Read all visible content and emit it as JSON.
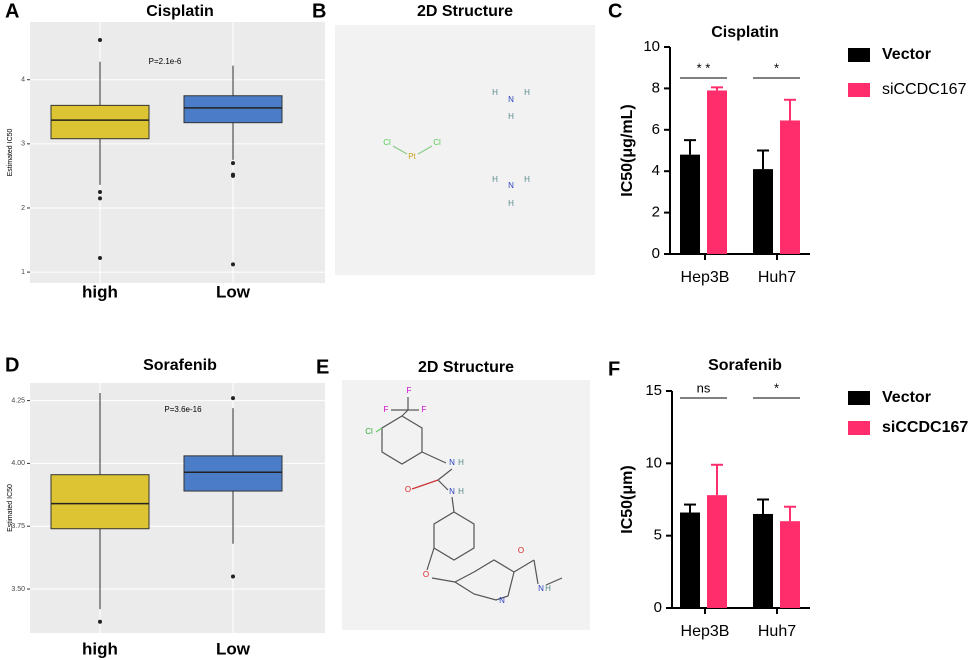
{
  "chart_data": [
    {
      "type": "box",
      "label": "A",
      "title": "Cisplatin",
      "ylabel": "Estimated IC50",
      "annotation": "P=2.1e-6",
      "categories": [
        "high",
        "Low"
      ],
      "boxes": [
        {
          "min": 2.36,
          "q1": 3.08,
          "median": 3.37,
          "q3": 3.6,
          "max": 4.28,
          "outliers": [
            4.62,
            2.25,
            2.15,
            1.22
          ],
          "color": "#dcc433"
        },
        {
          "min": 2.75,
          "q1": 3.33,
          "median": 3.56,
          "q3": 3.75,
          "max": 4.22,
          "outliers": [
            2.7,
            2.52,
            2.5,
            1.12
          ],
          "color": "#4a7cc7"
        }
      ],
      "ylim": [
        0.83,
        4.9
      ],
      "yticks": [
        1,
        2,
        3,
        4
      ],
      "grid": true
    },
    {
      "type": "structure",
      "label": "B",
      "title": "2D Structure",
      "atoms": [
        "Cl",
        "Pt",
        "Cl",
        "H",
        "N",
        "H",
        "H",
        "H",
        "N",
        "H",
        "H"
      ]
    },
    {
      "type": "bar",
      "label": "C",
      "title": "Cisplatin",
      "ylabel": "IC50(μg/mL)",
      "categories": [
        "Hep3B",
        "Huh7"
      ],
      "series": [
        {
          "name": "Vector",
          "color": "#000000",
          "values": [
            4.8,
            4.1
          ],
          "errors": [
            0.7,
            0.9
          ]
        },
        {
          "name": "siCCDC167",
          "color": "#ff2d6b",
          "values": [
            7.9,
            6.45
          ],
          "errors": [
            0.15,
            1.0
          ]
        }
      ],
      "significance": [
        "* *",
        "*"
      ],
      "ylim": [
        0,
        10
      ],
      "yticks": [
        0,
        2,
        4,
        6,
        8,
        10
      ]
    },
    {
      "type": "box",
      "label": "D",
      "title": "Sorafenib",
      "ylabel": "Estimated IC50",
      "annotation": "P=3.6e-16",
      "categories": [
        "high",
        "Low"
      ],
      "boxes": [
        {
          "min": 3.42,
          "q1": 3.74,
          "median": 3.84,
          "q3": 3.955,
          "max": 4.28,
          "outliers": [
            3.37
          ],
          "color": "#dcc433"
        },
        {
          "min": 3.68,
          "q1": 3.89,
          "median": 3.965,
          "q3": 4.03,
          "max": 4.22,
          "outliers": [
            4.26,
            3.55
          ],
          "color": "#4a7cc7"
        }
      ],
      "ylim": [
        3.325,
        4.32
      ],
      "yticks": [
        {
          "value": 3.5,
          "label": "3.50"
        },
        {
          "value": 3.75,
          "label": "3.75"
        },
        {
          "value": 4,
          "label": "4.00"
        },
        {
          "value": 4.25,
          "label": "4.25"
        }
      ],
      "grid": true
    },
    {
      "type": "structure",
      "label": "E",
      "title": "2D Structure",
      "atoms": [
        "F",
        "F",
        "F",
        "Cl",
        "N",
        "H",
        "O",
        "N",
        "H",
        "O",
        "O",
        "N",
        "N",
        "H"
      ]
    },
    {
      "type": "bar",
      "label": "F",
      "title": "Sorafenib",
      "ylabel": "IC50(μm)",
      "categories": [
        "Hep3B",
        "Huh7"
      ],
      "series": [
        {
          "name": "Vector",
          "color": "#000000",
          "values": [
            6.6,
            6.5
          ],
          "errors": [
            0.55,
            1.0
          ]
        },
        {
          "name": "siCCDC167",
          "color": "#ff2d6b",
          "values": [
            7.8,
            6.0
          ],
          "errors": [
            2.1,
            1.0
          ]
        }
      ],
      "significance": [
        "ns",
        "*"
      ],
      "ylim": [
        0,
        15
      ],
      "yticks": [
        0,
        5,
        10,
        15
      ]
    }
  ]
}
